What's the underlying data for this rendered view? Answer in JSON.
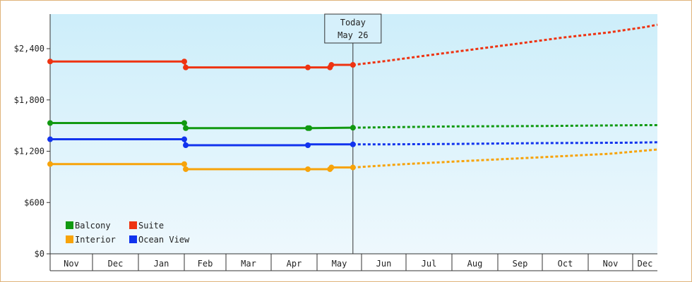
{
  "chart_data": {
    "type": "line",
    "title": "",
    "xlabel": "",
    "ylabel": "",
    "ylim": [
      0,
      2400
    ],
    "y_ticks": [
      "$0",
      "$600",
      "$1,200",
      "$1,800",
      "$2,400"
    ],
    "x_months": [
      "Nov",
      "Dec",
      "Jan",
      "Feb",
      "Mar",
      "Apr",
      "May",
      "Jun",
      "Jul",
      "Aug",
      "Sep",
      "Oct",
      "Nov",
      "Dec"
    ],
    "today_label": [
      "Today",
      "May 26"
    ],
    "grid": false,
    "legend_position": "bottom-left",
    "series": [
      {
        "name": "Balcony",
        "color": "#119911",
        "history": [
          [
            "2023-11-01",
            1530
          ],
          [
            "2024-02-01",
            1530
          ],
          [
            "2024-02-02",
            1470
          ],
          [
            "2024-04-25",
            1470
          ],
          [
            "2024-04-26",
            1470
          ],
          [
            "2024-05-26",
            1475
          ]
        ],
        "history_markers": [
          [
            "2023-11-01",
            1530
          ],
          [
            "2024-02-01",
            1530
          ],
          [
            "2024-02-02",
            1470
          ],
          [
            "2024-04-25",
            1470
          ],
          [
            "2024-04-26",
            1470
          ],
          [
            "2024-05-26",
            1475
          ]
        ],
        "forecast": [
          [
            "2024-05-26",
            1475
          ],
          [
            "2024-06-15",
            1480
          ],
          [
            "2024-08-01",
            1490
          ],
          [
            "2024-10-01",
            1495
          ],
          [
            "2024-12-15",
            1505
          ],
          [
            "2025-01-01",
            1505
          ]
        ]
      },
      {
        "name": "Suite",
        "color": "#ee3311",
        "history": [
          [
            "2023-11-01",
            2250
          ],
          [
            "2024-02-01",
            2250
          ],
          [
            "2024-02-02",
            2180
          ],
          [
            "2024-04-25",
            2180
          ],
          [
            "2024-05-10",
            2180
          ],
          [
            "2024-05-11",
            2210
          ],
          [
            "2024-05-26",
            2210
          ]
        ],
        "history_markers": [
          [
            "2023-11-01",
            2250
          ],
          [
            "2024-02-01",
            2250
          ],
          [
            "2024-02-02",
            2180
          ],
          [
            "2024-04-25",
            2180
          ],
          [
            "2024-05-10",
            2180
          ],
          [
            "2024-05-11",
            2210
          ],
          [
            "2024-05-26",
            2210
          ]
        ],
        "forecast": [
          [
            "2024-05-26",
            2210
          ],
          [
            "2024-06-15",
            2250
          ],
          [
            "2024-07-15",
            2320
          ],
          [
            "2024-08-15",
            2390
          ],
          [
            "2024-09-15",
            2460
          ],
          [
            "2024-10-15",
            2530
          ],
          [
            "2024-11-15",
            2590
          ],
          [
            "2024-12-15",
            2650
          ],
          [
            "2025-01-01",
            2680
          ]
        ]
      },
      {
        "name": "Interior",
        "color": "#f7a30a",
        "history": [
          [
            "2023-11-01",
            1050
          ],
          [
            "2024-02-01",
            1050
          ],
          [
            "2024-02-02",
            990
          ],
          [
            "2024-04-25",
            990
          ],
          [
            "2024-05-10",
            990
          ],
          [
            "2024-05-11",
            1010
          ],
          [
            "2024-05-26",
            1010
          ]
        ],
        "history_markers": [
          [
            "2023-11-01",
            1050
          ],
          [
            "2024-02-01",
            1050
          ],
          [
            "2024-02-02",
            990
          ],
          [
            "2024-04-25",
            990
          ],
          [
            "2024-05-10",
            990
          ],
          [
            "2024-05-11",
            1010
          ],
          [
            "2024-05-26",
            1010
          ]
        ],
        "forecast": [
          [
            "2024-05-26",
            1010
          ],
          [
            "2024-07-01",
            1050
          ],
          [
            "2024-08-15",
            1090
          ],
          [
            "2024-10-01",
            1130
          ],
          [
            "2024-11-15",
            1170
          ],
          [
            "2025-01-01",
            1220
          ]
        ]
      },
      {
        "name": "Ocean View",
        "color": "#1133ee",
        "history": [
          [
            "2023-11-01",
            1340
          ],
          [
            "2024-02-01",
            1340
          ],
          [
            "2024-02-02",
            1270
          ],
          [
            "2024-04-25",
            1270
          ],
          [
            "2024-04-26",
            1280
          ],
          [
            "2024-05-26",
            1280
          ]
        ],
        "history_markers": [
          [
            "2023-11-01",
            1340
          ],
          [
            "2024-02-01",
            1340
          ],
          [
            "2024-02-02",
            1270
          ],
          [
            "2024-04-25",
            1270
          ],
          [
            "2024-05-26",
            1280
          ]
        ],
        "forecast": [
          [
            "2024-05-26",
            1280
          ],
          [
            "2024-06-15",
            1280
          ],
          [
            "2024-08-01",
            1285
          ],
          [
            "2024-10-01",
            1295
          ],
          [
            "2024-12-01",
            1300
          ],
          [
            "2025-01-01",
            1305
          ]
        ]
      }
    ],
    "legend": [
      {
        "label": "Balcony",
        "color": "#119911"
      },
      {
        "label": "Suite",
        "color": "#ee3311"
      },
      {
        "label": "Interior",
        "color": "#f7a30a"
      },
      {
        "label": "Ocean View",
        "color": "#1133ee"
      }
    ]
  }
}
